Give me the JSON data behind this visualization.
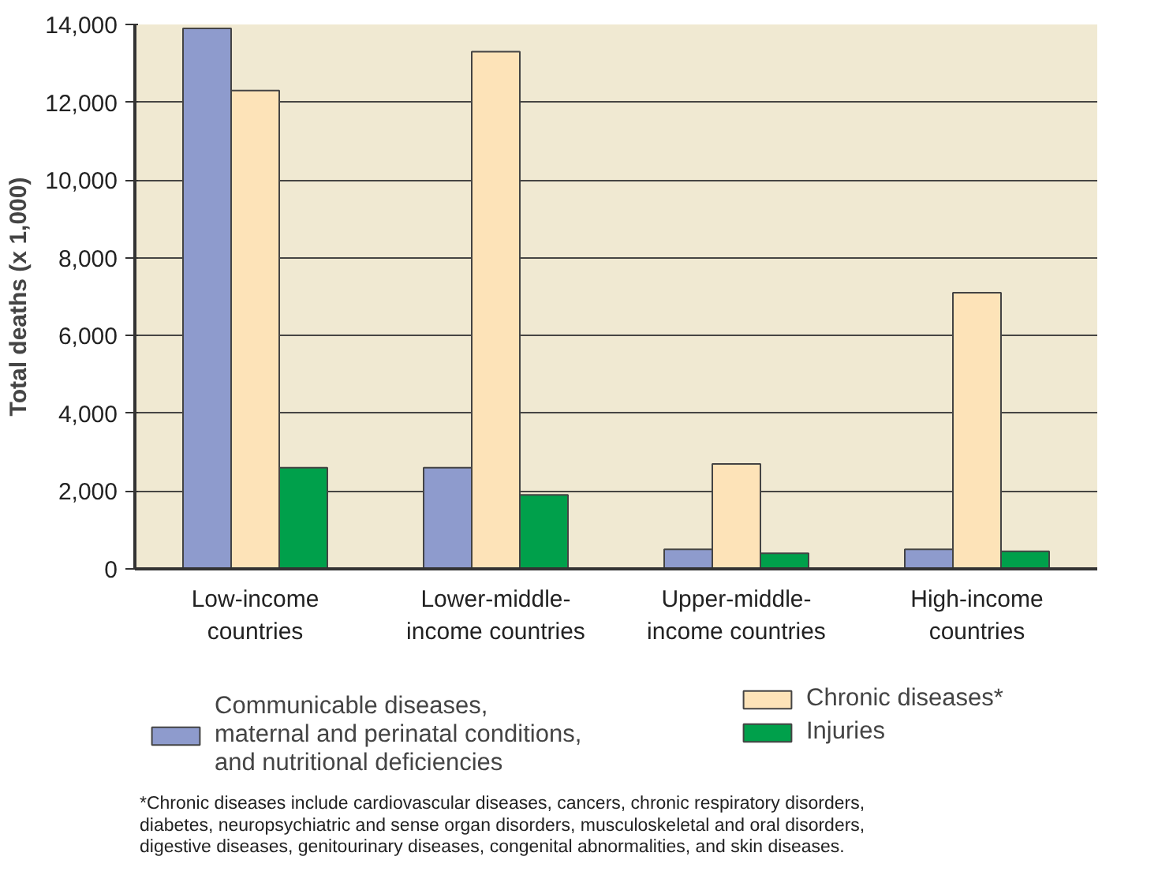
{
  "chart_data": {
    "type": "bar",
    "ylabel": "Total deaths (x 1,000)",
    "categories": [
      "Low-income\ncountries",
      "Lower-middle-\nincome countries",
      "Upper-middle-\nincome countries",
      "High-income\ncountries"
    ],
    "series": [
      {
        "name": "Communicable diseases,\nmaternal and perinatal conditions,\nand nutritional deficiencies",
        "color": "#8e9bcd",
        "values": [
          13900,
          2600,
          500,
          500
        ]
      },
      {
        "name": "Chronic diseases*",
        "color": "#fde3b8",
        "values": [
          12300,
          13300,
          2700,
          7100
        ]
      },
      {
        "name": "Injuries",
        "color": "#00a04b",
        "values": [
          2600,
          1900,
          400,
          450
        ]
      }
    ],
    "ylim": [
      0,
      14000
    ],
    "yticks": [
      {
        "value": 0,
        "label": "0"
      },
      {
        "value": 2000,
        "label": "2,000"
      },
      {
        "value": 4000,
        "label": "4,000"
      },
      {
        "value": 6000,
        "label": "6,000"
      },
      {
        "value": 8000,
        "label": "8,000"
      },
      {
        "value": 10000,
        "label": "10,000"
      },
      {
        "value": 12000,
        "label": "12,000"
      },
      {
        "value": 14000,
        "label": "14,000"
      }
    ],
    "grid": "y",
    "legend": "bottom",
    "annotations": [
      "*Chronic diseases include cardiovascular diseases, cancers, chronic respiratory disorders,\ndiabetes, neuropsychiatric and sense organ disorders, musculoskeletal and oral disorders,\ndigestive diseases, genitourinary diseases, congenital abnormalities, and skin diseases."
    ]
  }
}
